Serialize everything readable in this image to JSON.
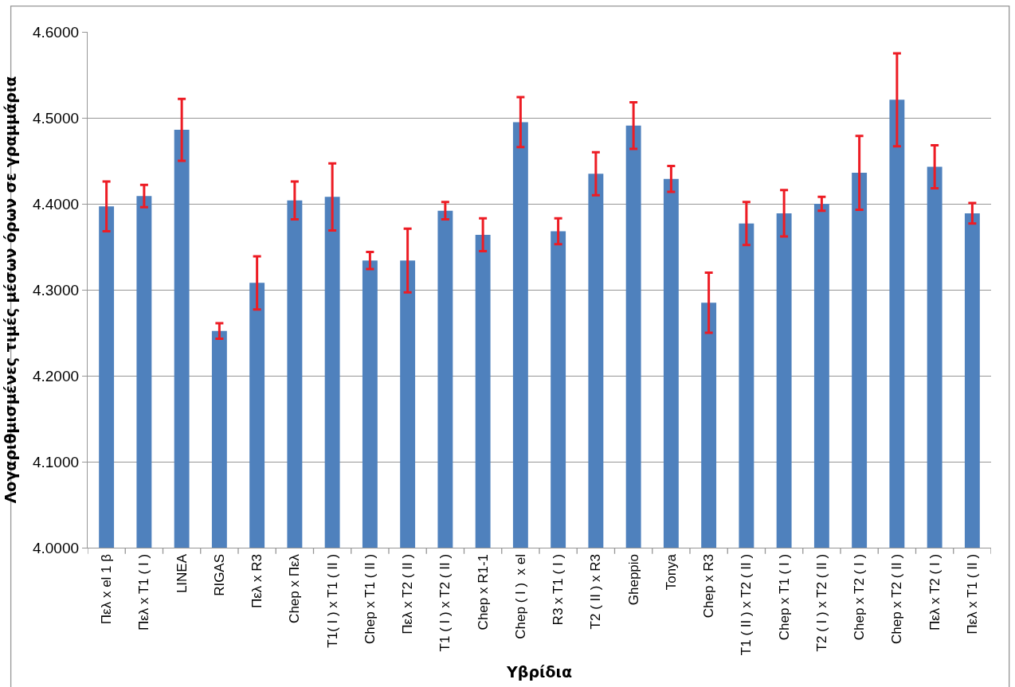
{
  "chart_data": {
    "type": "bar",
    "xlabel": "Υβρίδια",
    "ylabel": "Λογαριθμισμένες τιμές μέσων όρων σε γραμμάρια",
    "categories": [
      "Πελ x el 1 β",
      "Πελ x T1 ( I )",
      "LINEA",
      "RIGAS",
      "Πελ x R3",
      "Chep x Πελ",
      "T1( I ) x T1 ( II )",
      "Chep x T1 ( II )",
      "Πελ x T2 ( II )",
      "T1 ( I ) x T2 ( II )",
      "Chep x R1-1",
      "Chep ( I )  x el",
      "R3 x T1 ( I )",
      "T2 ( II ) x R3",
      "Gheppio",
      "Tonya",
      "Chep x R3",
      "T1 ( II ) x T2 ( II )",
      "Chep x T1 ( I )",
      "T2 ( I ) x T2 ( II )",
      "Chep x T2 ( I )",
      "Chep x T2 ( II )",
      "Πελ x T2 ( I )",
      "Πελ x T1 ( II )"
    ],
    "series": [
      {
        "color": "#4f81bd",
        "values": [
          4.397,
          4.409,
          4.486,
          4.252,
          4.308,
          4.404,
          4.408,
          4.334,
          4.334,
          4.392,
          4.364,
          4.495,
          4.368,
          4.435,
          4.491,
          4.429,
          4.285,
          4.377,
          4.389,
          4.4,
          4.436,
          4.521,
          4.443,
          4.389
        ],
        "errors": [
          0.029,
          0.013,
          0.036,
          0.009,
          0.031,
          0.022,
          0.039,
          0.01,
          0.037,
          0.01,
          0.019,
          0.029,
          0.015,
          0.025,
          0.027,
          0.015,
          0.035,
          0.025,
          0.027,
          0.008,
          0.043,
          0.054,
          0.025,
          0.012
        ]
      }
    ],
    "ylim": [
      4.0,
      4.6
    ],
    "yticks": [
      {
        "value": 4.0,
        "label": "4.0000"
      },
      {
        "value": 4.1,
        "label": "4.1000"
      },
      {
        "value": 4.2,
        "label": "4.2000"
      },
      {
        "value": 4.3,
        "label": "4.3000"
      },
      {
        "value": 4.4,
        "label": "4.4000"
      },
      {
        "value": 4.5,
        "label": "4.5000"
      },
      {
        "value": 4.6,
        "label": "4.6000"
      }
    ],
    "grid": "y"
  }
}
